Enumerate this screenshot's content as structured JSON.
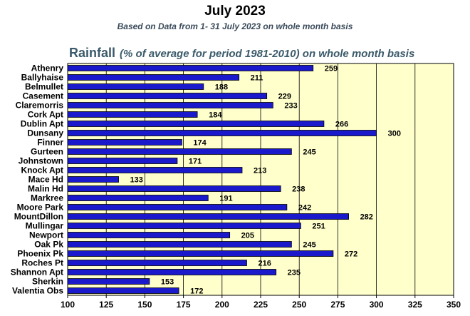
{
  "page": {
    "title": "July 2023",
    "subtitle": "Based on Data from 1- 31 July 2023 on whole month basis",
    "heading": "Rainfall",
    "heading_note": "(% of average for period 1981-2010) on whole month basis"
  },
  "colors": {
    "bar": "#1a1acc",
    "plot_background": "#ffffcc",
    "heading": "#3a5a6a"
  },
  "chart_data": {
    "type": "bar",
    "orientation": "horizontal",
    "categories": [
      "Athenry",
      "Ballyhaise",
      "Belmullet",
      "Casement",
      "Claremorris",
      "Cork Apt",
      "Dublin Apt",
      "Dunsany",
      "Finner",
      "Gurteen",
      "Johnstown",
      "Knock Apt",
      "Mace Hd",
      "Malin Hd",
      "Markree",
      "Moore Park",
      "MountDillon",
      "Mullingar",
      "Newport",
      "Oak Pk",
      "Phoenix Pk",
      "Roches Pt",
      "Shannon Apt",
      "Sherkin",
      "Valentia Obs"
    ],
    "values": [
      259,
      211,
      188,
      229,
      233,
      184,
      266,
      300,
      174,
      245,
      171,
      213,
      133,
      238,
      191,
      242,
      282,
      251,
      205,
      245,
      272,
      216,
      235,
      153,
      172
    ],
    "value_labels": [
      "259",
      "211",
      "188",
      "229",
      "233",
      "184",
      "266",
      "300",
      "174",
      "245",
      "171",
      "213",
      "133",
      "238",
      "191",
      "242",
      "282",
      "251",
      "205",
      "245",
      "272",
      "216",
      "235",
      "153",
      "172"
    ],
    "xlim": [
      100,
      350
    ],
    "xticks": [
      "100",
      "125",
      "150",
      "175",
      "200",
      "225",
      "250",
      "275",
      "300",
      "325",
      "350"
    ],
    "grid": "vertical",
    "legend": "none"
  }
}
